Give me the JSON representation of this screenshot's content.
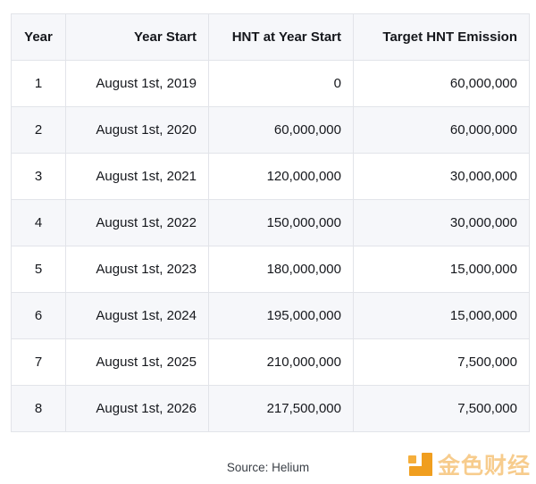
{
  "table": {
    "columns": [
      {
        "label": "Year",
        "align": "center"
      },
      {
        "label": "Year Start",
        "align": "right"
      },
      {
        "label": "HNT at Year Start",
        "align": "right"
      },
      {
        "label": "Target HNT Emission",
        "align": "right"
      }
    ],
    "rows": [
      [
        "1",
        "August 1st, 2019",
        "0",
        "60,000,000"
      ],
      [
        "2",
        "August 1st, 2020",
        "60,000,000",
        "60,000,000"
      ],
      [
        "3",
        "August 1st, 2021",
        "120,000,000",
        "30,000,000"
      ],
      [
        "4",
        "August 1st, 2022",
        "150,000,000",
        "30,000,000"
      ],
      [
        "5",
        "August 1st, 2023",
        "180,000,000",
        "15,000,000"
      ],
      [
        "6",
        "August 1st, 2024",
        "195,000,000",
        "15,000,000"
      ],
      [
        "7",
        "August 1st, 2025",
        "210,000,000",
        "7,500,000"
      ],
      [
        "8",
        "August 1st, 2026",
        "217,500,000",
        "7,500,000"
      ]
    ]
  },
  "footer": {
    "source_label": "Source: Helium"
  },
  "branding": {
    "logo_text": "金色财经",
    "accent_color": "#F09E1F"
  },
  "chart_data": {
    "type": "table",
    "title": "",
    "columns": [
      "Year",
      "Year Start",
      "HNT at Year Start",
      "Target HNT Emission"
    ],
    "rows": [
      [
        1,
        "August 1st, 2019",
        0,
        60000000
      ],
      [
        2,
        "August 1st, 2020",
        60000000,
        60000000
      ],
      [
        3,
        "August 1st, 2021",
        120000000,
        30000000
      ],
      [
        4,
        "August 1st, 2022",
        150000000,
        30000000
      ],
      [
        5,
        "August 1st, 2023",
        180000000,
        15000000
      ],
      [
        6,
        "August 1st, 2024",
        195000000,
        15000000
      ],
      [
        7,
        "August 1st, 2025",
        210000000,
        7500000
      ],
      [
        8,
        "August 1st, 2026",
        217500000,
        7500000
      ]
    ],
    "source": "Source: Helium",
    "layout_hints": {
      "zebra_striping": "even rows shaded",
      "header_background": "#f6f7fa",
      "stripe_background": "#f6f7fa",
      "border_color": "#e2e4e9"
    }
  }
}
